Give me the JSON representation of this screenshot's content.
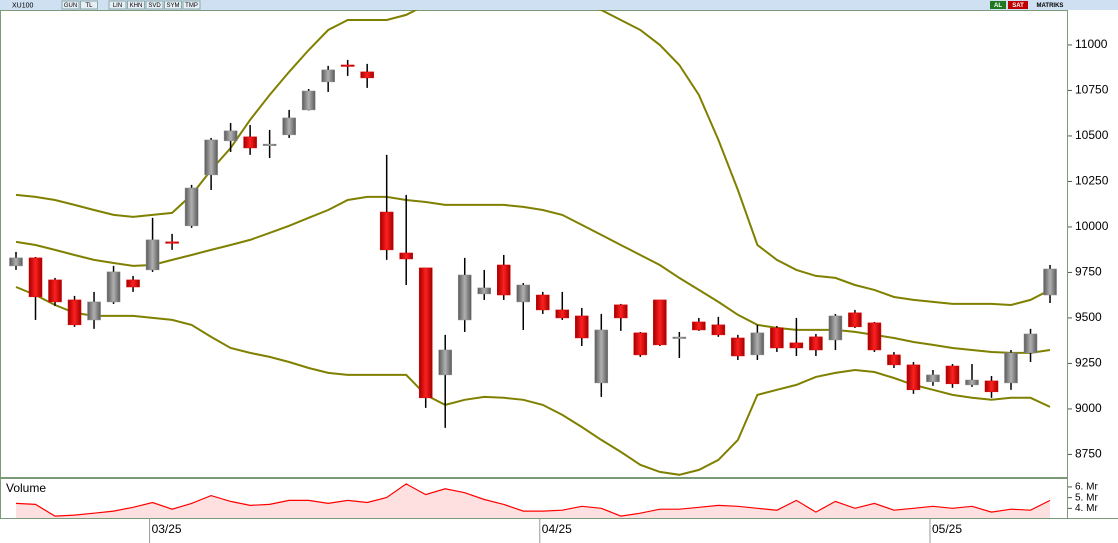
{
  "toolbar": {
    "symbol": "XU100",
    "buttons": [
      "GUN",
      "TL",
      "LIN",
      "KHN",
      "SVD",
      "SYM",
      "TMP"
    ],
    "right": [
      "AL",
      "SAT",
      "MATRIKS"
    ]
  },
  "chart_data": [
    {
      "type": "candlestick",
      "categories": [
        null,
        null,
        null,
        null,
        null,
        null,
        null,
        "03/25",
        null,
        null,
        null,
        null,
        null,
        null,
        null,
        null,
        null,
        null,
        null,
        null,
        null,
        null,
        null,
        null,
        null,
        null,
        null,
        "04/25",
        null,
        null,
        null,
        null,
        null,
        null,
        null,
        null,
        null,
        null,
        null,
        null,
        null,
        null,
        null,
        null,
        null,
        null,
        null,
        "05/25",
        null,
        null,
        null,
        null,
        null,
        null
      ],
      "open": [
        9786,
        9830,
        9709,
        9599,
        9489,
        9588,
        9709,
        9764,
        9918,
        10006,
        10286,
        10473,
        10495,
        10451,
        10506,
        10643,
        10797,
        10890,
        10852,
        10082,
        9857,
        9775,
        9187,
        9489,
        9632,
        9791,
        9588,
        9626,
        9544,
        9511,
        9143,
        9572,
        9418,
        9599,
        9390,
        9478,
        9462,
        9390,
        9297,
        9445,
        9363,
        9396,
        9379,
        9528,
        9473,
        9297,
        9242,
        9149,
        9236,
        9132,
        9154,
        9143,
        9308,
        9626
      ],
      "high": [
        9863,
        9835,
        9720,
        9621,
        9643,
        9786,
        9731,
        10050,
        9962,
        10231,
        10489,
        10571,
        10560,
        10533,
        10643,
        10758,
        10885,
        10918,
        10896,
        10396,
        10176,
        9775,
        9407,
        9830,
        9764,
        9846,
        9692,
        9643,
        9643,
        9555,
        9522,
        9577,
        9423,
        9599,
        9423,
        9500,
        9506,
        9407,
        9462,
        9456,
        9500,
        9412,
        9522,
        9544,
        9478,
        9313,
        9258,
        9214,
        9247,
        9247,
        9181,
        9324,
        9440,
        9791
      ],
      "low": [
        9764,
        9489,
        9566,
        9451,
        9440,
        9577,
        9643,
        9753,
        9874,
        9995,
        10203,
        10412,
        10396,
        10379,
        10489,
        10640,
        10742,
        10830,
        10764,
        9819,
        9681,
        9006,
        8896,
        9423,
        9599,
        9599,
        9434,
        9522,
        9489,
        9346,
        9066,
        9429,
        9286,
        9346,
        9280,
        9429,
        9396,
        9269,
        9269,
        9313,
        9291,
        9291,
        9324,
        9445,
        9313,
        9225,
        9083,
        9127,
        9116,
        9121,
        9061,
        9105,
        9258,
        9582
      ],
      "close": [
        9830,
        9616,
        9588,
        9462,
        9588,
        9753,
        9670,
        9929,
        9915,
        10214,
        10478,
        10528,
        10434,
        10455,
        10599,
        10747,
        10863,
        10885,
        10819,
        9874,
        9824,
        9061,
        9324,
        9736,
        9665,
        9626,
        9681,
        9544,
        9500,
        9390,
        9434,
        9500,
        9297,
        9352,
        9395,
        9434,
        9407,
        9291,
        9418,
        9335,
        9335,
        9324,
        9511,
        9451,
        9324,
        9242,
        9105,
        9187,
        9138,
        9159,
        9094,
        9308,
        9412,
        9769
      ],
      "up_color": "#8a8a8a",
      "down_color": "#e00000",
      "bands": [
        {
          "color": "#808000",
          "values": [
            10176,
            10165,
            10148,
            10121,
            10093,
            10066,
            10055,
            10066,
            10077,
            10176,
            10313,
            10434,
            10588,
            10725,
            10852,
            10972,
            11082,
            11137,
            11137,
            11137,
            11165,
            11220,
            11275,
            11313,
            11329,
            11329,
            11313,
            11275,
            11247,
            11220,
            11192,
            11137,
            11082,
            11000,
            10890,
            10725,
            10478,
            10203,
            9901,
            9819,
            9764,
            9731,
            9720,
            9681,
            9654,
            9615,
            9599,
            9588,
            9577,
            9577,
            9577,
            9571,
            9599,
            9654
          ]
        },
        {
          "color": "#808000",
          "values": [
            9918,
            9901,
            9874,
            9846,
            9819,
            9802,
            9786,
            9791,
            9819,
            9846,
            9874,
            9901,
            9929,
            9967,
            10006,
            10050,
            10093,
            10148,
            10165,
            10165,
            10148,
            10137,
            10121,
            10121,
            10121,
            10121,
            10110,
            10093,
            10066,
            10011,
            9956,
            9901,
            9846,
            9791,
            9720,
            9654,
            9588,
            9517,
            9462,
            9445,
            9434,
            9434,
            9434,
            9423,
            9407,
            9390,
            9368,
            9352,
            9335,
            9324,
            9313,
            9308,
            9308,
            9324
          ]
        },
        {
          "color": "#808000",
          "values": [
            9670,
            9626,
            9571,
            9528,
            9511,
            9511,
            9511,
            9500,
            9489,
            9462,
            9396,
            9335,
            9308,
            9286,
            9258,
            9225,
            9198,
            9187,
            9187,
            9187,
            9187,
            9077,
            9022,
            9050,
            9066,
            9061,
            9050,
            9022,
            8967,
            8901,
            8830,
            8764,
            8693,
            8654,
            8638,
            8665,
            8720,
            8830,
            9077,
            9105,
            9132,
            9176,
            9198,
            9214,
            9203,
            9170,
            9132,
            9105,
            9077,
            9061,
            9050,
            9061,
            9061,
            9011
          ]
        }
      ],
      "ylim": [
        8626,
        11192
      ],
      "yticks": [
        8750,
        9000,
        9250,
        9500,
        9750,
        10000,
        10250,
        10500,
        10750,
        11000
      ]
    },
    {
      "type": "line",
      "title": "Volume",
      "color": "#ff0000",
      "values": [
        4.46,
        4.37,
        3.28,
        3.37,
        3.55,
        3.74,
        4.1,
        4.55,
        3.92,
        4.46,
        5.19,
        4.65,
        4.28,
        4.37,
        4.74,
        4.74,
        4.46,
        4.74,
        4.55,
        5.01,
        6.28,
        5.28,
        5.83,
        5.46,
        4.83,
        4.37,
        3.74,
        3.74,
        3.83,
        4.19,
        4.01,
        3.28,
        3.55,
        3.92,
        3.92,
        4.1,
        4.28,
        4.19,
        4.01,
        3.83,
        4.74,
        3.65,
        4.65,
        4.01,
        4.46,
        3.83,
        4.01,
        4.19,
        4.01,
        4.19,
        3.65,
        3.92,
        3.83,
        4.74
      ],
      "ylim": [
        3.1,
        6.74
      ],
      "yticks": [
        {
          "value": 4,
          "label": "4. Mr"
        },
        {
          "value": 5,
          "label": "5. Mr"
        },
        {
          "value": 6,
          "label": "6. Mr"
        }
      ]
    }
  ]
}
